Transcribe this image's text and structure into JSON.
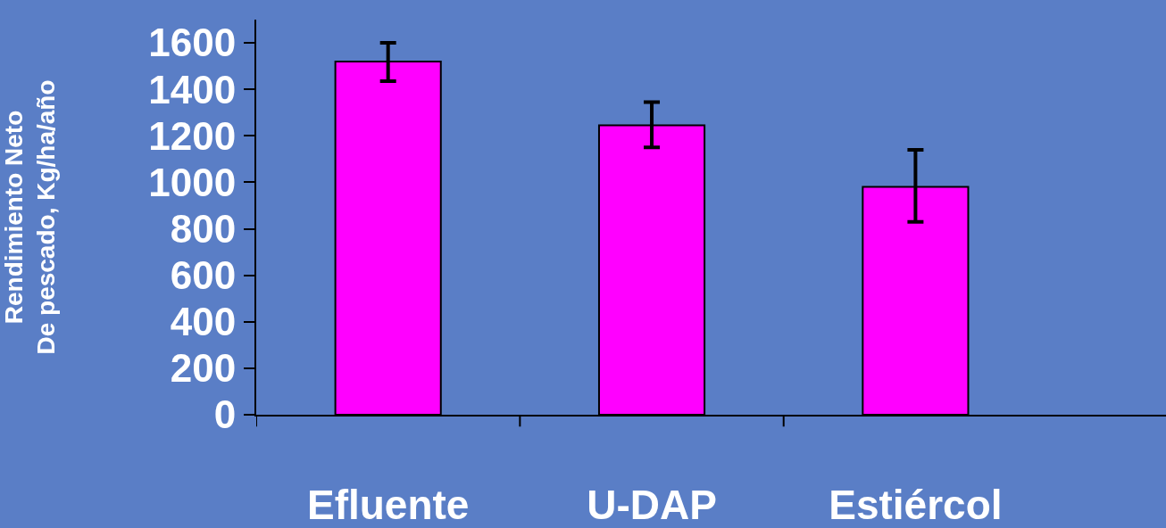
{
  "chart_data": {
    "type": "bar",
    "ylabel": "Rendimiento Neto\nDe pescado, Kg/ha/año",
    "categories": [
      "Efluente",
      "U-DAP",
      "Estiércol"
    ],
    "values": [
      1520,
      1245,
      980
    ],
    "errors": [
      [
        1435,
        1600
      ],
      [
        1150,
        1345
      ],
      [
        830,
        1140
      ]
    ],
    "color": "#ff00ff",
    "ylim": [
      0,
      1700
    ],
    "yticks": [
      0,
      200,
      400,
      600,
      800,
      1000,
      1200,
      1400,
      1600
    ],
    "grid": false,
    "legend": false
  }
}
